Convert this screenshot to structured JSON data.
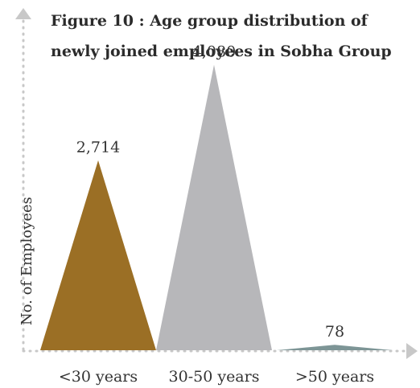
{
  "chart_data": {
    "type": "bar",
    "shape": "triangle",
    "title": "Figure 10 :  Age group distribution of newly joined employees in Sobha Group",
    "title_lines": [
      "Figure 10 :  Age group distribution of",
      "newly joined employees in Sobha Group"
    ],
    "xlabel": "",
    "ylabel": "No. of Employees",
    "categories": [
      "<30 years",
      "30-50 years",
      ">50 years"
    ],
    "values": [
      2714,
      4080,
      78
    ],
    "value_labels": [
      "2,714",
      "4,080",
      "78"
    ],
    "colors": [
      "#9b6f25",
      "#b7b7ba",
      "#7d9596"
    ],
    "ylim": [
      0,
      4500
    ],
    "grid": false,
    "legend": "none"
  }
}
